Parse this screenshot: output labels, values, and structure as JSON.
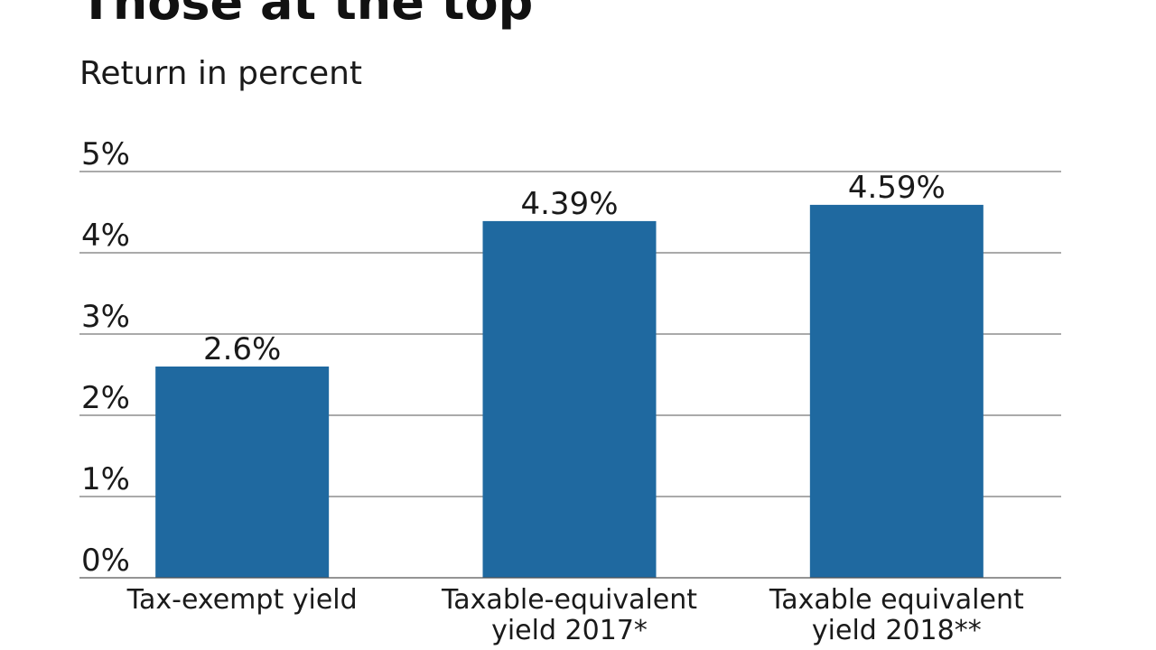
{
  "title": "Those at the top",
  "subtitle": "Return in percent",
  "colors": {
    "bar": "#1f69a0",
    "grid": "#555555",
    "text": "#1a1a1a"
  },
  "chart_data": {
    "type": "bar",
    "categories": [
      [
        "Tax-exempt yield"
      ],
      [
        "Taxable-equivalent",
        "yield 2017*"
      ],
      [
        "Taxable equivalent",
        "yield 2018**"
      ]
    ],
    "values": [
      2.6,
      4.39,
      4.59
    ],
    "data_labels": [
      "2.6%",
      "4.39%",
      "4.59%"
    ],
    "ylim": [
      0,
      5
    ],
    "yticks": [
      0,
      1,
      2,
      3,
      4,
      5
    ],
    "ytick_labels": [
      "0%",
      "1%",
      "2%",
      "3%",
      "4%",
      "5%"
    ],
    "grid": true,
    "xlabel": "",
    "ylabel": ""
  }
}
